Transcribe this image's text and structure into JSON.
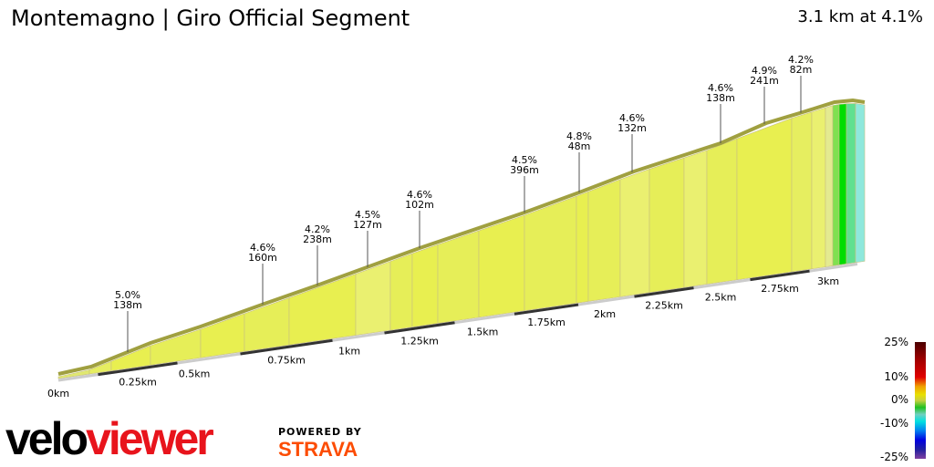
{
  "header": {
    "title": "Montemagno | Giro Official Segment",
    "summary": "3.1 km at 4.1%"
  },
  "distance_labels": [
    "0km",
    "0.25km",
    "0.5km",
    "0.75km",
    "1km",
    "1.25km",
    "1.5km",
    "1.75km",
    "2km",
    "2.25km",
    "2.5km",
    "2.75km",
    "3km"
  ],
  "segment_markers": [
    {
      "grade": "5.0%",
      "length": "138m"
    },
    {
      "grade": "4.6%",
      "length": "160m"
    },
    {
      "grade": "4.2%",
      "length": "238m"
    },
    {
      "grade": "4.5%",
      "length": "127m"
    },
    {
      "grade": "4.6%",
      "length": "102m"
    },
    {
      "grade": "4.5%",
      "length": "396m"
    },
    {
      "grade": "4.8%",
      "length": "48m"
    },
    {
      "grade": "4.6%",
      "length": "132m"
    },
    {
      "grade": "4.6%",
      "length": "138m"
    },
    {
      "grade": "4.9%",
      "length": "241m"
    },
    {
      "grade": "4.2%",
      "length": "82m"
    }
  ],
  "legend": {
    "labels": [
      "25%",
      "10%",
      "0%",
      "-10%",
      "-25%"
    ]
  },
  "branding": {
    "logo": "veloviewer",
    "powered_by": "POWERED BY",
    "strava": "STRAVA"
  },
  "colors": {
    "climb": "#e8ef50",
    "flat": "#00dd00",
    "descent": "#8ee8dc",
    "strava": "#fc4c02",
    "logo_red": "#e8141c"
  }
}
